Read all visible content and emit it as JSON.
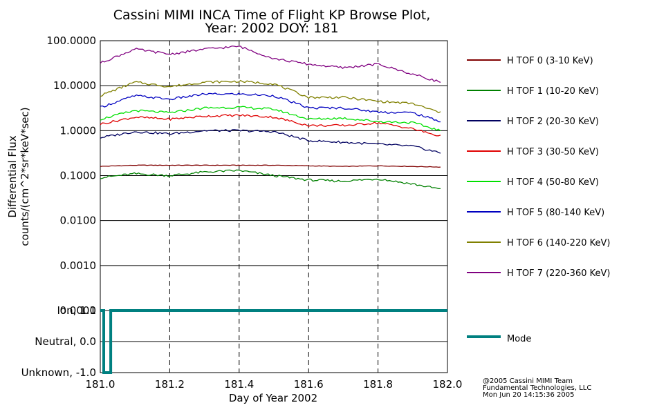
{
  "chart_data": [
    {
      "type": "line",
      "title": "Cassini MIMI INCA Time of Flight KP Browse Plot,",
      "subtitle": "Year: 2002 DOY: 181",
      "ylabel_line1": "Differential Flux",
      "ylabel_line2": "counts/(cm^2*sr*keV*sec)",
      "yscale": "log",
      "ylim": [
        0.0001,
        100
      ],
      "yticks": [
        100,
        10,
        1,
        0.1,
        0.01,
        0.001,
        0.0001
      ],
      "ytick_labels": [
        "100.0000",
        "10.0000",
        "1.0000",
        "0.1000",
        "0.0100",
        "0.0010",
        "0.0001"
      ],
      "xlim": [
        181.0,
        182.0
      ],
      "x_grid": [
        181.2,
        181.4,
        181.6,
        181.8
      ],
      "legend_position": "right",
      "series": [
        {
          "name": "H TOF 0 (3-10 KeV)",
          "color": "#800000",
          "x": [
            181.0,
            181.1,
            181.2,
            181.3,
            181.4,
            181.5,
            181.6,
            181.7,
            181.8,
            181.9,
            181.98
          ],
          "values": [
            0.16,
            0.17,
            0.17,
            0.17,
            0.17,
            0.17,
            0.165,
            0.16,
            0.165,
            0.16,
            0.155
          ]
        },
        {
          "name": "H TOF 1 (10-20 KeV)",
          "color": "#008000",
          "x": [
            181.0,
            181.1,
            181.2,
            181.3,
            181.4,
            181.5,
            181.6,
            181.7,
            181.8,
            181.9,
            181.98
          ],
          "values": [
            0.09,
            0.11,
            0.1,
            0.12,
            0.13,
            0.1,
            0.08,
            0.075,
            0.085,
            0.065,
            0.05
          ]
        },
        {
          "name": "H TOF 2 (20-30 KeV)",
          "color": "#000060",
          "x": [
            181.0,
            181.1,
            181.2,
            181.3,
            181.4,
            181.5,
            181.6,
            181.7,
            181.8,
            181.9,
            181.98
          ],
          "values": [
            0.7,
            0.95,
            0.85,
            1.0,
            1.0,
            0.95,
            0.6,
            0.55,
            0.5,
            0.45,
            0.32
          ]
        },
        {
          "name": "H TOF 3 (30-50 KeV)",
          "color": "#e00000",
          "x": [
            181.0,
            181.1,
            181.2,
            181.3,
            181.4,
            181.5,
            181.6,
            181.7,
            181.8,
            181.9,
            181.98
          ],
          "values": [
            1.4,
            2.0,
            1.8,
            2.1,
            2.2,
            2.0,
            1.3,
            1.3,
            1.5,
            1.1,
            0.75
          ]
        },
        {
          "name": "H TOF 4 (50-80 KeV)",
          "color": "#00e000",
          "x": [
            181.0,
            181.1,
            181.2,
            181.3,
            181.4,
            181.5,
            181.6,
            181.7,
            181.8,
            181.9,
            181.98
          ],
          "values": [
            1.8,
            2.8,
            2.5,
            3.2,
            3.3,
            3.0,
            1.8,
            1.9,
            1.6,
            1.5,
            1.0
          ]
        },
        {
          "name": "H TOF 5 (80-140 KeV)",
          "color": "#0000c0",
          "x": [
            181.0,
            181.1,
            181.2,
            181.3,
            181.4,
            181.5,
            181.6,
            181.7,
            181.8,
            181.9,
            181.98
          ],
          "values": [
            3.3,
            6.0,
            5.0,
            6.5,
            6.5,
            6.0,
            3.2,
            3.2,
            2.6,
            2.5,
            1.6
          ]
        },
        {
          "name": "H TOF 6 (140-220 KeV)",
          "color": "#808000",
          "x": [
            181.0,
            181.1,
            181.2,
            181.3,
            181.4,
            181.5,
            181.6,
            181.7,
            181.8,
            181.9,
            181.98
          ],
          "values": [
            6.0,
            12.0,
            9.5,
            12.0,
            12.5,
            11.0,
            5.5,
            5.5,
            4.5,
            4.0,
            2.5
          ]
        },
        {
          "name": "H TOF 7 (220-360 KeV)",
          "color": "#800080",
          "x": [
            181.0,
            181.1,
            181.2,
            181.3,
            181.4,
            181.5,
            181.6,
            181.7,
            181.8,
            181.9,
            181.98
          ],
          "values": [
            32,
            65,
            50,
            65,
            75,
            40,
            30,
            25,
            30,
            18,
            12
          ]
        }
      ]
    },
    {
      "type": "line",
      "xlabel": "Day of Year 2002",
      "ytick_labels": [
        "Ion, 1.0",
        "Neutral, 0.0",
        "Unknown, -1.0"
      ],
      "yticks": [
        1.0,
        0.0,
        -1.0
      ],
      "ylim": [
        -1.0,
        1.0
      ],
      "xlim": [
        181.0,
        182.0
      ],
      "xtick_labels": [
        "181.0",
        "181.2",
        "181.4",
        "181.6",
        "181.8",
        "182.0"
      ],
      "xticks": [
        181.0,
        181.2,
        181.4,
        181.6,
        181.8,
        182.0
      ],
      "x_grid": [
        181.2,
        181.4,
        181.6,
        181.8
      ],
      "series": [
        {
          "name": "Mode",
          "color": "#008080",
          "x": [
            181.0,
            181.01,
            181.01,
            181.03,
            181.03,
            182.0
          ],
          "values": [
            1.0,
            1.0,
            -1.0,
            -1.0,
            1.0,
            1.0
          ]
        }
      ]
    }
  ],
  "credits": {
    "line1": "@2005 Cassini MIMI Team",
    "line2": "Fundamental Technologies, LLC",
    "line3": "Mon Jun 20 14:15:36 2005"
  }
}
